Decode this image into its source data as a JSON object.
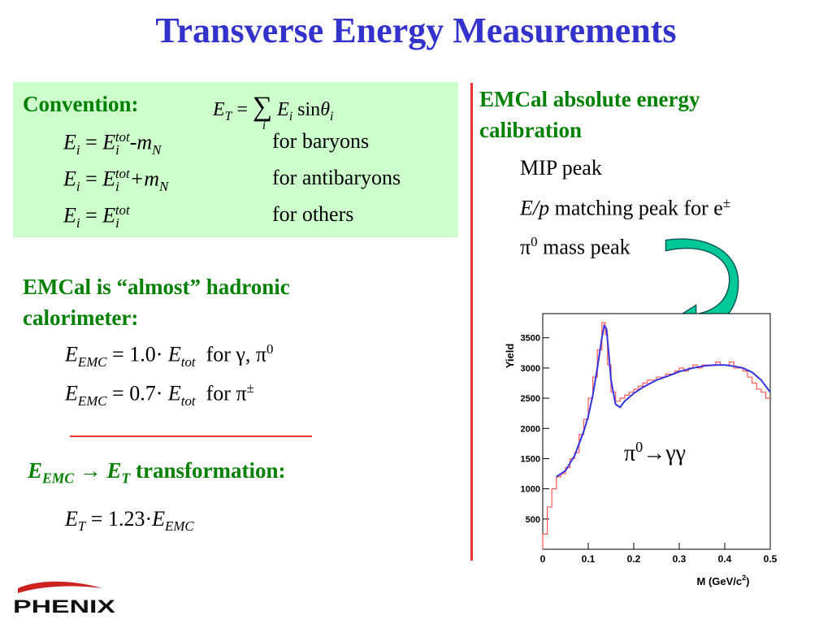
{
  "slide": {
    "title": "Transverse Energy Measurements",
    "convention": {
      "heading": "Convention:",
      "formula": {
        "lhs": "E",
        "lhs_sub": "T",
        "eq": "=",
        "sum": "∑",
        "term": "E",
        "term_sub": "i",
        "sin": "sin",
        "theta": "θ",
        "theta_sub": "i",
        "sum_index": "i"
      },
      "rows": [
        {
          "lhs": "E",
          "lhs_sub": "i",
          "eq": " = ",
          "rhs": "E",
          "rhs_sub": "i",
          "rhs_sup": "tot",
          "tail": "-m",
          "tail_sub": "N",
          "label": "for baryons"
        },
        {
          "lhs": "E",
          "lhs_sub": "i",
          "eq": " = ",
          "rhs": "E",
          "rhs_sub": "i",
          "rhs_sup": "tot",
          "tail": "+m",
          "tail_sub": "N",
          "label": "for antibaryons"
        },
        {
          "lhs": "E",
          "lhs_sub": "i",
          "eq": " = ",
          "rhs": "E",
          "rhs_sub": "i",
          "rhs_sup": "tot",
          "tail": "",
          "tail_sub": "",
          "label": "for others"
        }
      ]
    },
    "hadronic": {
      "heading_line1": "EMCal is “almost” hadronic",
      "heading_line2": "calorimeter:",
      "rows": [
        {
          "lhs": "E",
          "lhs_sub": "EMC",
          "rhs": " = 1.0· ",
          "e": "E",
          "e_sub": "tot",
          "label": "  for γ, π",
          "label_sup": "0"
        },
        {
          "lhs": "E",
          "lhs_sub": "EMC",
          "rhs": " = 0.7· ",
          "e": "E",
          "e_sub": "tot",
          "label": "  for π",
          "label_sup": "±"
        }
      ]
    },
    "transformation": {
      "a": "E",
      "a_sub": "EMC",
      "arrow": " → ",
      "b": "E",
      "b_sub": "T",
      "text": " transformation:",
      "eq_lhs": "E",
      "eq_lhs_sub": "T",
      "eq_mid": " = 1.23·",
      "eq_rhs": "E",
      "eq_rhs_sub": "EMC"
    },
    "calibration": {
      "heading_line1": "EMCal absolute energy",
      "heading_line2": "calibration",
      "items": [
        {
          "pre": "MIP peak",
          "sup": "",
          "post": ""
        },
        {
          "pre": "E/p",
          "sup": "",
          "post": " matching peak for e",
          "tail_sup": "±"
        },
        {
          "pre": "π",
          "sup": "0",
          "post": " mass peak"
        }
      ]
    },
    "chart_annotation": {
      "pi": "π",
      "sup": "0",
      "rest": "→γγ"
    },
    "logo_text": "PHENIX",
    "colors": {
      "title": "#3333cc",
      "green_text": "#008000",
      "box_bg": "#ccffcc",
      "red_line": "#ee3333",
      "arrow": "#00c896"
    }
  },
  "chart_data": {
    "type": "line",
    "ylabel": "Yield",
    "xlabel": "M (GeV/c",
    "xlabel_sup": "2",
    "xlabel_end": ")",
    "xlim": [
      0,
      0.5
    ],
    "ylim": [
      0,
      3900
    ],
    "x_ticks": [
      0,
      0.1,
      0.2,
      0.3,
      0.4,
      0.5
    ],
    "x_tick_labels": [
      "0",
      "0.1",
      "0.2",
      "0.3",
      "0.4",
      "0.5"
    ],
    "y_ticks": [
      500,
      1000,
      1500,
      2000,
      2500,
      3000,
      3500
    ],
    "y_tick_labels": [
      "500",
      "1000",
      "1500",
      "2000",
      "2500",
      "3000",
      "3500"
    ],
    "series": [
      {
        "style": "histogram",
        "color": "#ff5555",
        "x": [
          0.005,
          0.015,
          0.025,
          0.035,
          0.045,
          0.055,
          0.065,
          0.075,
          0.085,
          0.095,
          0.105,
          0.115,
          0.125,
          0.135,
          0.14,
          0.145,
          0.155,
          0.165,
          0.175,
          0.185,
          0.195,
          0.205,
          0.215,
          0.225,
          0.235,
          0.245,
          0.255,
          0.265,
          0.275,
          0.285,
          0.295,
          0.305,
          0.315,
          0.325,
          0.335,
          0.345,
          0.355,
          0.365,
          0.375,
          0.385,
          0.395,
          0.405,
          0.415,
          0.425,
          0.435,
          0.445,
          0.455,
          0.465,
          0.475,
          0.485,
          0.495
        ],
        "values": [
          250,
          700,
          1000,
          1200,
          1250,
          1350,
          1500,
          1600,
          1900,
          2150,
          2500,
          2850,
          3300,
          3750,
          3550,
          3050,
          2600,
          2450,
          2500,
          2550,
          2600,
          2650,
          2700,
          2750,
          2800,
          2800,
          2850,
          2850,
          2900,
          2900,
          2950,
          3000,
          2950,
          3000,
          3050,
          3000,
          3050,
          3050,
          3050,
          3100,
          3050,
          3050,
          3100,
          3000,
          3000,
          2950,
          2850,
          2750,
          2650,
          2600,
          2500
        ]
      },
      {
        "style": "fit",
        "color": "#3333dd",
        "x": [
          0.03,
          0.05,
          0.07,
          0.09,
          0.1,
          0.11,
          0.12,
          0.13,
          0.135,
          0.14,
          0.145,
          0.15,
          0.16,
          0.17,
          0.18,
          0.2,
          0.22,
          0.25,
          0.28,
          0.3,
          0.33,
          0.36,
          0.38,
          0.4,
          0.42,
          0.44,
          0.46,
          0.48,
          0.5
        ],
        "values": [
          1200,
          1300,
          1550,
          1950,
          2200,
          2550,
          3000,
          3500,
          3700,
          3650,
          3250,
          2800,
          2400,
          2350,
          2450,
          2580,
          2680,
          2800,
          2880,
          2940,
          3000,
          3040,
          3050,
          3050,
          3030,
          3000,
          2930,
          2800,
          2600
        ]
      }
    ]
  }
}
